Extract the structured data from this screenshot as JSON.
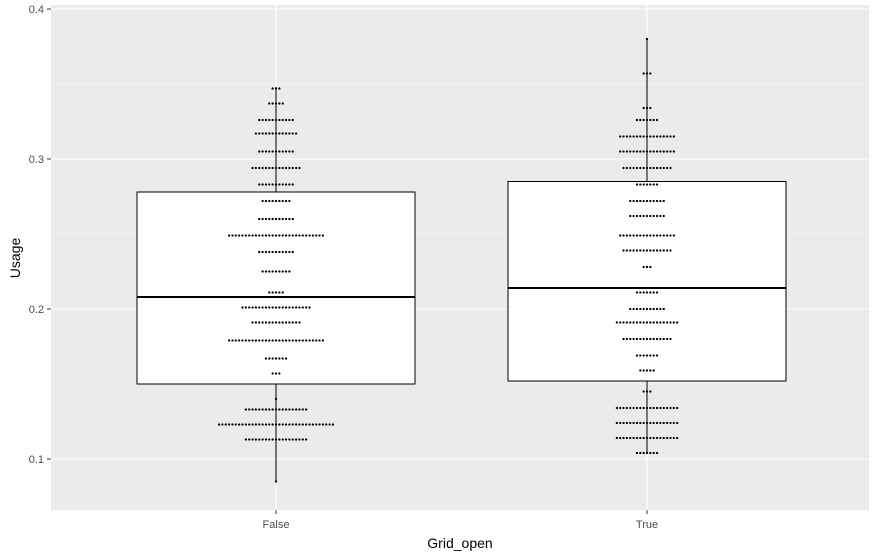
{
  "chart_data": {
    "type": "boxplot",
    "title": "",
    "xlabel": "Grid_open",
    "ylabel": "Usage",
    "categories": [
      "False",
      "True"
    ],
    "ylim": [
      0.065,
      0.4
    ],
    "y_ticks": [
      0.1,
      0.2,
      0.3,
      0.4
    ],
    "y_tick_labels": [
      "0.1",
      "0.2",
      "0.3",
      "0.4"
    ],
    "grid": true,
    "colors": {
      "panel": "#ebebeb",
      "grid_major": "#ffffff",
      "box_fill": "#ffffff",
      "box_stroke": "#000000",
      "dots": "#000000"
    },
    "boxes": [
      {
        "category": "False",
        "whisker_low": 0.085,
        "q1": 0.15,
        "median": 0.208,
        "q3": 0.278,
        "whisker_high": 0.348
      },
      {
        "category": "True",
        "whisker_low": 0.104,
        "q1": 0.152,
        "median": 0.214,
        "q3": 0.285,
        "whisker_high": 0.38
      }
    ],
    "dot_bins": [
      {
        "category": "False",
        "bins": [
          {
            "y": 0.085,
            "count": 1
          },
          {
            "y": 0.113,
            "count": 19
          },
          {
            "y": 0.123,
            "count": 35
          },
          {
            "y": 0.133,
            "count": 19
          },
          {
            "y": 0.14,
            "count": 1
          },
          {
            "y": 0.157,
            "count": 3
          },
          {
            "y": 0.167,
            "count": 7
          },
          {
            "y": 0.179,
            "count": 29
          },
          {
            "y": 0.191,
            "count": 15
          },
          {
            "y": 0.201,
            "count": 21
          },
          {
            "y": 0.211,
            "count": 5
          },
          {
            "y": 0.225,
            "count": 9
          },
          {
            "y": 0.238,
            "count": 11
          },
          {
            "y": 0.249,
            "count": 29
          },
          {
            "y": 0.26,
            "count": 11
          },
          {
            "y": 0.272,
            "count": 9
          },
          {
            "y": 0.283,
            "count": 11
          },
          {
            "y": 0.294,
            "count": 15
          },
          {
            "y": 0.305,
            "count": 11
          },
          {
            "y": 0.317,
            "count": 13
          },
          {
            "y": 0.326,
            "count": 11
          },
          {
            "y": 0.337,
            "count": 5
          },
          {
            "y": 0.347,
            "count": 3
          }
        ]
      },
      {
        "category": "True",
        "bins": [
          {
            "y": 0.104,
            "count": 7
          },
          {
            "y": 0.114,
            "count": 19
          },
          {
            "y": 0.124,
            "count": 19
          },
          {
            "y": 0.134,
            "count": 19
          },
          {
            "y": 0.145,
            "count": 3
          },
          {
            "y": 0.159,
            "count": 5
          },
          {
            "y": 0.169,
            "count": 7
          },
          {
            "y": 0.18,
            "count": 15
          },
          {
            "y": 0.191,
            "count": 19
          },
          {
            "y": 0.2,
            "count": 11
          },
          {
            "y": 0.211,
            "count": 7
          },
          {
            "y": 0.228,
            "count": 3
          },
          {
            "y": 0.239,
            "count": 15
          },
          {
            "y": 0.249,
            "count": 17
          },
          {
            "y": 0.262,
            "count": 11
          },
          {
            "y": 0.272,
            "count": 11
          },
          {
            "y": 0.283,
            "count": 7
          },
          {
            "y": 0.294,
            "count": 15
          },
          {
            "y": 0.305,
            "count": 17
          },
          {
            "y": 0.315,
            "count": 17
          },
          {
            "y": 0.326,
            "count": 7
          },
          {
            "y": 0.334,
            "count": 3
          },
          {
            "y": 0.357,
            "count": 3
          },
          {
            "y": 0.38,
            "count": 1
          }
        ]
      }
    ]
  }
}
